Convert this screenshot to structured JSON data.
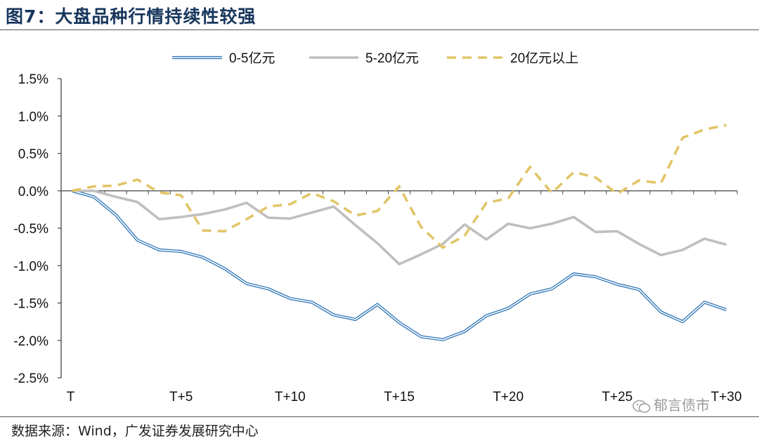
{
  "title": "图7：大盘品种行情持续性较强",
  "source": "数据来源：Wind，广发证券发展研究中心",
  "watermark": "郁言债市",
  "chart_data": {
    "type": "line",
    "title": "",
    "xlabel": "",
    "ylabel": "",
    "x": [
      "T",
      "T+1",
      "T+2",
      "T+3",
      "T+4",
      "T+5",
      "T+6",
      "T+7",
      "T+8",
      "T+9",
      "T+10",
      "T+11",
      "T+12",
      "T+13",
      "T+14",
      "T+15",
      "T+16",
      "T+17",
      "T+18",
      "T+19",
      "T+20",
      "T+21",
      "T+22",
      "T+23",
      "T+24",
      "T+25",
      "T+26",
      "T+27",
      "T+28",
      "T+29",
      "T+30"
    ],
    "x_tick_labels": [
      "T",
      "T+5",
      "T+10",
      "T+15",
      "T+20",
      "T+25",
      "T+30"
    ],
    "x_tick_index": [
      0,
      5,
      10,
      15,
      20,
      25,
      30
    ],
    "y_ticks": [
      1.5,
      1.0,
      0.5,
      0.0,
      -0.5,
      -1.0,
      -1.5,
      -2.0,
      -2.5
    ],
    "y_tick_labels": [
      "1.5%",
      "1.0%",
      "0.5%",
      "0.0%",
      "-0.5%",
      "-1.0%",
      "-1.5%",
      "-2.0%",
      "-2.5%"
    ],
    "ylim": [
      -2.5,
      1.5
    ],
    "grid": false,
    "legend_position": "top",
    "series": [
      {
        "name": "0-5亿元",
        "style": "double-blue",
        "color": "#2e75b6",
        "values": [
          0.0,
          -0.08,
          -0.32,
          -0.66,
          -0.79,
          -0.81,
          -0.89,
          -1.04,
          -1.24,
          -1.31,
          -1.44,
          -1.49,
          -1.66,
          -1.72,
          -1.52,
          -1.76,
          -1.95,
          -1.99,
          -1.88,
          -1.67,
          -1.57,
          -1.38,
          -1.31,
          -1.11,
          -1.15,
          -1.25,
          -1.32,
          -1.62,
          -1.75,
          -1.49,
          -1.59
        ]
      },
      {
        "name": "5-20亿元",
        "style": "solid-gray",
        "color": "#bfbfbf",
        "values": [
          0.0,
          0.0,
          -0.08,
          -0.15,
          -0.38,
          -0.35,
          -0.31,
          -0.25,
          -0.16,
          -0.36,
          -0.37,
          -0.29,
          -0.21,
          -0.46,
          -0.7,
          -0.98,
          -0.85,
          -0.71,
          -0.45,
          -0.65,
          -0.44,
          -0.5,
          -0.44,
          -0.35,
          -0.55,
          -0.54,
          -0.71,
          -0.86,
          -0.79,
          -0.64,
          -0.72
        ]
      },
      {
        "name": "20亿元以上",
        "style": "dashed-gold",
        "color": "#e1c568",
        "values": [
          0.0,
          0.06,
          0.07,
          0.15,
          -0.02,
          -0.06,
          -0.53,
          -0.54,
          -0.38,
          -0.21,
          -0.18,
          -0.03,
          -0.14,
          -0.33,
          -0.27,
          0.06,
          -0.48,
          -0.76,
          -0.6,
          -0.16,
          -0.1,
          0.32,
          -0.03,
          0.25,
          0.18,
          -0.04,
          0.14,
          0.1,
          0.71,
          0.82,
          0.88
        ]
      }
    ]
  }
}
